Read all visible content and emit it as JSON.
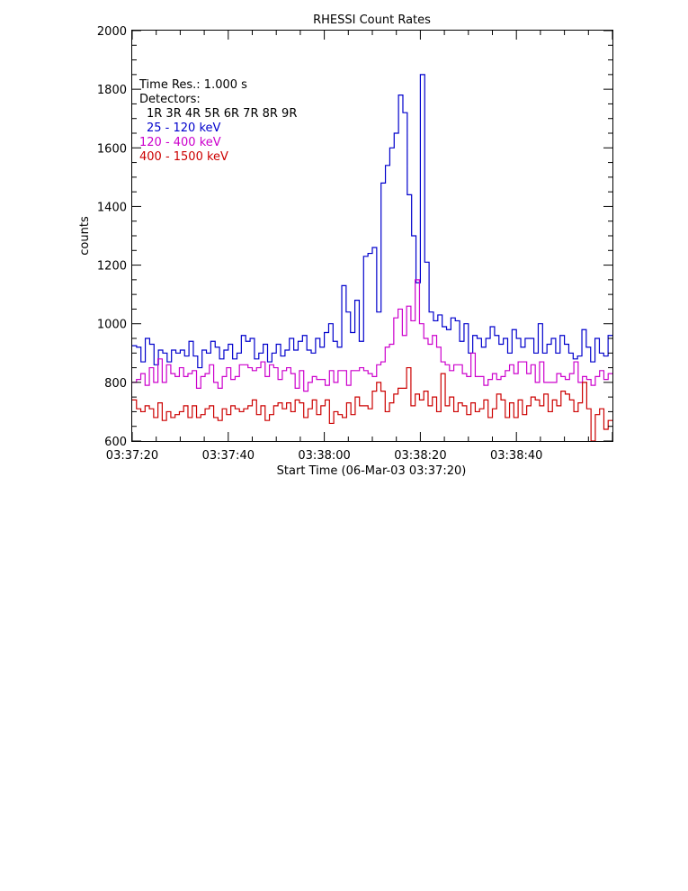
{
  "chart_data": {
    "type": "line",
    "step": true,
    "title": "RHESSI Count Rates",
    "xlabel": "Start Time (06-Mar-03 03:37:20)",
    "ylabel": "counts",
    "xlim": [
      0,
      100
    ],
    "ylim": [
      600,
      2000
    ],
    "yticks": [
      600,
      800,
      1000,
      1200,
      1400,
      1600,
      1800,
      2000
    ],
    "ytick_labels": [
      "600",
      "800",
      "1000",
      "1200",
      "1400",
      "1600",
      "1800",
      "2000"
    ],
    "xticks": [
      0,
      20,
      40,
      60,
      80
    ],
    "xtick_labels": [
      "03:37:20",
      "03:37:40",
      "03:38:00",
      "03:38:20",
      "03:38:40"
    ],
    "x_unit_note": "seconds after 03:37:20",
    "grid": false,
    "legend_position": "top-left",
    "annotations": {
      "time_res": "Time Res.: 1.000 s",
      "detectors_label": "Detectors:",
      "detectors": "1R 3R 4R 5R 6R 7R 8R 9R"
    },
    "series": [
      {
        "name": "25 - 120 keV",
        "color": "#0000cc",
        "values": [
          925,
          920,
          870,
          950,
          930,
          860,
          910,
          900,
          870,
          910,
          900,
          910,
          890,
          940,
          890,
          850,
          910,
          900,
          940,
          920,
          880,
          910,
          930,
          880,
          900,
          960,
          940,
          950,
          880,
          900,
          930,
          870,
          900,
          930,
          890,
          910,
          950,
          910,
          940,
          960,
          910,
          900,
          950,
          920,
          970,
          1000,
          940,
          920,
          1130,
          1040,
          970,
          1080,
          940,
          1230,
          1240,
          1260,
          1040,
          1480,
          1540,
          1600,
          1650,
          1780,
          1720,
          1440,
          1300,
          1140,
          1850,
          1210,
          1040,
          1010,
          1030,
          990,
          980,
          1020,
          1010,
          940,
          1000,
          900,
          960,
          950,
          920,
          950,
          990,
          960,
          930,
          950,
          900,
          980,
          950,
          920,
          950,
          950,
          900,
          1000,
          900,
          930,
          950,
          900,
          960,
          930,
          900,
          880,
          890,
          980,
          920,
          870,
          950,
          900,
          890,
          960
        ]
      },
      {
        "name": "120 - 400 keV",
        "color": "#cc00cc",
        "values": [
          800,
          810,
          830,
          790,
          850,
          800,
          880,
          800,
          860,
          830,
          820,
          850,
          820,
          830,
          840,
          780,
          820,
          830,
          860,
          800,
          780,
          820,
          850,
          810,
          820,
          860,
          860,
          850,
          840,
          850,
          870,
          820,
          860,
          850,
          810,
          840,
          850,
          830,
          780,
          840,
          770,
          800,
          820,
          810,
          810,
          790,
          840,
          800,
          840,
          840,
          790,
          840,
          840,
          850,
          840,
          830,
          820,
          860,
          870,
          920,
          930,
          1020,
          1050,
          960,
          1060,
          1010,
          1150,
          1000,
          950,
          930,
          960,
          920,
          870,
          860,
          840,
          860,
          860,
          830,
          820,
          900,
          820,
          820,
          790,
          810,
          830,
          810,
          820,
          840,
          860,
          830,
          870,
          870,
          830,
          860,
          800,
          870,
          800,
          800,
          800,
          830,
          820,
          810,
          830,
          870,
          800,
          820,
          810,
          790,
          820,
          840,
          810,
          830
        ]
      },
      {
        "name": "400 - 1500 keV",
        "color": "#cc0000",
        "values": [
          740,
          710,
          700,
          720,
          710,
          680,
          730,
          670,
          700,
          680,
          690,
          700,
          720,
          680,
          720,
          680,
          690,
          710,
          720,
          680,
          670,
          710,
          690,
          720,
          710,
          700,
          710,
          720,
          740,
          690,
          720,
          670,
          690,
          720,
          730,
          710,
          730,
          700,
          740,
          730,
          680,
          710,
          740,
          690,
          720,
          740,
          660,
          700,
          690,
          680,
          730,
          690,
          750,
          720,
          720,
          710,
          770,
          800,
          770,
          700,
          730,
          760,
          780,
          780,
          850,
          720,
          760,
          740,
          770,
          720,
          750,
          700,
          830,
          720,
          750,
          700,
          730,
          720,
          690,
          730,
          700,
          710,
          740,
          680,
          710,
          760,
          740,
          680,
          730,
          680,
          740,
          690,
          720,
          750,
          740,
          720,
          760,
          700,
          740,
          720,
          770,
          760,
          740,
          700,
          730,
          800,
          710,
          600,
          690,
          710,
          640,
          670
        ]
      }
    ]
  }
}
